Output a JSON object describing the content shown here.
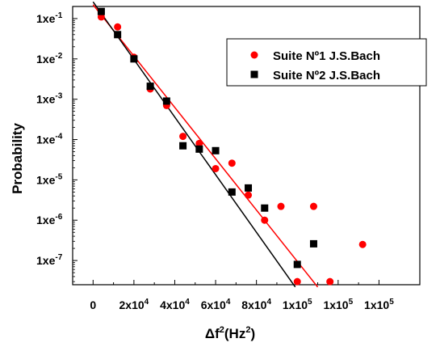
{
  "chart_data": {
    "type": "scatter",
    "title": "",
    "xlabel": {
      "base": "Δf",
      "exp1": "2",
      "mid": "(Hz",
      "exp2": "2",
      "end": ")"
    },
    "ylabel": "Probability",
    "xlim": [
      -10000,
      160000
    ],
    "ylim_log10": [
      -7.6,
      -0.7
    ],
    "x_ticks": [
      {
        "value": 0,
        "mant": "0",
        "exp": ""
      },
      {
        "value": 20000,
        "mant": "2x10",
        "exp": "4"
      },
      {
        "value": 40000,
        "mant": "4x10",
        "exp": "4"
      },
      {
        "value": 60000,
        "mant": "6x10",
        "exp": "4"
      },
      {
        "value": 80000,
        "mant": "8x10",
        "exp": "4"
      },
      {
        "value": 100000,
        "mant": "1x10",
        "exp": "5"
      },
      {
        "value": 120000,
        "mant": "1x10",
        "exp": "5"
      },
      {
        "value": 140000,
        "mant": "1x10",
        "exp": "5"
      }
    ],
    "y_ticks": [
      {
        "log": -1,
        "mant": "1xe",
        "exp": "-1"
      },
      {
        "log": -2,
        "mant": "1xe",
        "exp": "-2"
      },
      {
        "log": -3,
        "mant": "1xe",
        "exp": "-3"
      },
      {
        "log": -4,
        "mant": "1xe",
        "exp": "-4"
      },
      {
        "log": -5,
        "mant": "1xe",
        "exp": "-5"
      },
      {
        "log": -6,
        "mant": "1xe",
        "exp": "-6"
      },
      {
        "log": -7,
        "mant": "1xe",
        "exp": "-7"
      }
    ],
    "legend_position": "top-right",
    "series": [
      {
        "name": "Suite Nº1 J.S.Bach",
        "color": "#ff0000",
        "marker": "circle",
        "points": [
          [
            4000,
            0.11
          ],
          [
            12000,
            0.062
          ],
          [
            20000,
            0.011
          ],
          [
            28000,
            0.0018
          ],
          [
            36000,
            0.0007
          ],
          [
            44000,
            0.00012
          ],
          [
            52000,
            8e-05
          ],
          [
            60000,
            1.9e-05
          ],
          [
            68000,
            2.6e-05
          ],
          [
            76000,
            4.2e-06
          ],
          [
            84000,
            1e-06
          ],
          [
            92000,
            2.2e-06
          ],
          [
            100000,
            3e-08
          ],
          [
            108000,
            2.2e-06
          ],
          [
            116000,
            3e-08
          ],
          [
            132000,
            2.5e-07
          ]
        ],
        "fit_points": [
          [
            0,
            0.22
          ],
          [
            110000,
            2.2e-08
          ]
        ]
      },
      {
        "name": "Suite Nº2 J.S.Bach",
        "color": "#000000",
        "marker": "square",
        "points": [
          [
            4000,
            0.15
          ],
          [
            12000,
            0.04
          ],
          [
            20000,
            0.01
          ],
          [
            28000,
            0.0021
          ],
          [
            36000,
            0.0009
          ],
          [
            44000,
            7e-05
          ],
          [
            52000,
            5.8e-05
          ],
          [
            60000,
            5.3e-05
          ],
          [
            68000,
            5e-06
          ],
          [
            76000,
            6.3e-06
          ],
          [
            84000,
            2e-06
          ],
          [
            100000,
            8e-08
          ],
          [
            108000,
            2.6e-07
          ]
        ],
        "fit_points": [
          [
            0,
            0.26
          ],
          [
            99000,
            2.2e-08
          ]
        ]
      }
    ]
  }
}
